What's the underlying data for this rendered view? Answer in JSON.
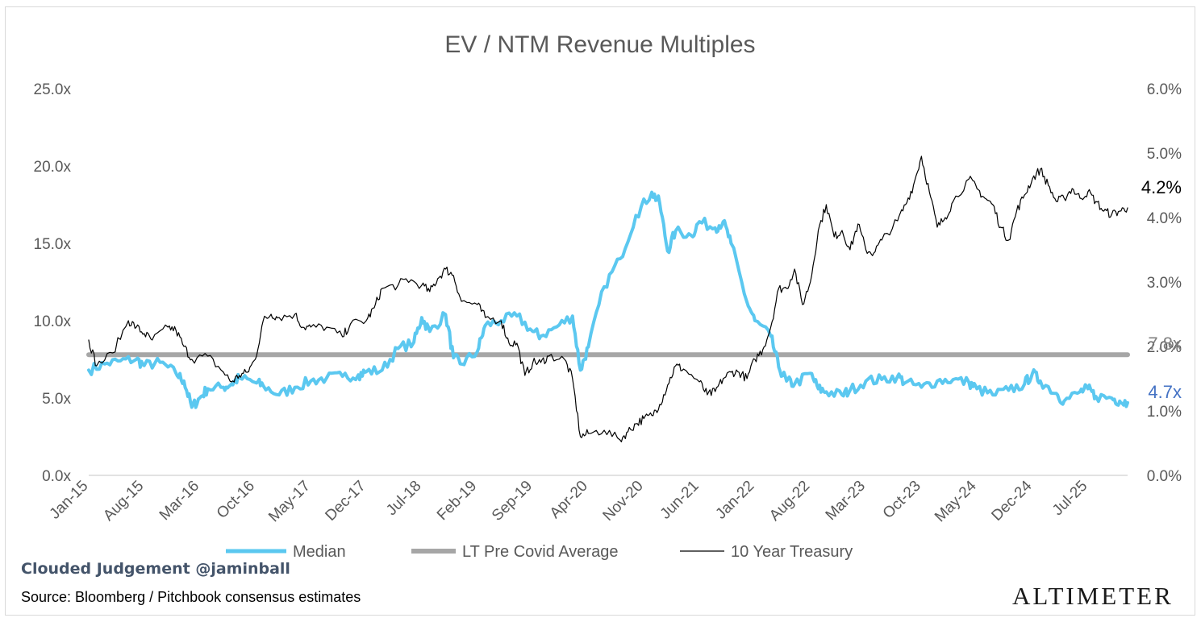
{
  "chart_data": {
    "type": "line",
    "title": "EV / NTM Revenue Multiples",
    "x_tick_labels": [
      "Jan-15",
      "Aug-15",
      "Mar-16",
      "Oct-16",
      "May-17",
      "Dec-17",
      "Jul-18",
      "Feb-19",
      "Sep-19",
      "Apr-20",
      "Nov-20",
      "Jun-21",
      "Jan-22",
      "Aug-22",
      "Mar-23",
      "Oct-23",
      "May-24",
      "Dec-24",
      "Jul-25"
    ],
    "y_left": {
      "range": [
        0,
        25
      ],
      "ticks": [
        "0.0x",
        "5.0x",
        "10.0x",
        "15.0x",
        "20.0x",
        "25.0x"
      ]
    },
    "y_right": {
      "range": [
        0,
        6
      ],
      "ticks": [
        "0.0%",
        "1.0%",
        "2.0%",
        "3.0%",
        "4.0%",
        "5.0%",
        "6.0%"
      ]
    },
    "grid": false,
    "legend_position": "bottom",
    "series": [
      {
        "name": "Median",
        "axis": "left",
        "color": "#5bc8f0",
        "points": [
          [
            "Jan-15",
            6.8
          ],
          [
            "Mar-15",
            7.2
          ],
          [
            "May-15",
            7.4
          ],
          [
            "Jul-15",
            7.5
          ],
          [
            "Aug-15",
            7.1
          ],
          [
            "Oct-15",
            7.3
          ],
          [
            "Dec-15",
            6.6
          ],
          [
            "Jan-16",
            6.1
          ],
          [
            "Feb-16",
            4.4
          ],
          [
            "Mar-16",
            5.0
          ],
          [
            "Apr-16",
            5.6
          ],
          [
            "Jun-16",
            5.7
          ],
          [
            "Jul-16",
            5.9
          ],
          [
            "Aug-16",
            6.3
          ],
          [
            "Oct-16",
            6.0
          ],
          [
            "Nov-16",
            5.8
          ],
          [
            "Jan-17",
            5.2
          ],
          [
            "Mar-17",
            5.7
          ],
          [
            "May-17",
            6.1
          ],
          [
            "Jul-17",
            6.3
          ],
          [
            "Sep-17",
            6.4
          ],
          [
            "Nov-17",
            6.5
          ],
          [
            "Dec-17",
            6.7
          ],
          [
            "Feb-18",
            6.8
          ],
          [
            "Apr-18",
            8.2
          ],
          [
            "Jun-18",
            8.6
          ],
          [
            "Jul-18",
            10.2
          ],
          [
            "Aug-18",
            9.3
          ],
          [
            "Oct-18",
            10.4
          ],
          [
            "Nov-18",
            7.6
          ],
          [
            "Dec-18",
            7.2
          ],
          [
            "Feb-19",
            8.0
          ],
          [
            "Mar-19",
            9.7
          ],
          [
            "May-19",
            10.0
          ],
          [
            "Jul-19",
            10.3
          ],
          [
            "Sep-19",
            9.3
          ],
          [
            "Oct-19",
            9.0
          ],
          [
            "Dec-19",
            9.6
          ],
          [
            "Feb-20",
            10.3
          ],
          [
            "Mar-20",
            6.8
          ],
          [
            "Apr-20",
            8.3
          ],
          [
            "Jun-20",
            12.2
          ],
          [
            "Aug-20",
            14.0
          ],
          [
            "Oct-20",
            16.8
          ],
          [
            "Dec-20",
            18.3
          ],
          [
            "Jan-21",
            17.6
          ],
          [
            "Feb-21",
            14.5
          ],
          [
            "Mar-21",
            15.8
          ],
          [
            "May-21",
            15.5
          ],
          [
            "Jun-21",
            16.4
          ],
          [
            "Aug-21",
            16.0
          ],
          [
            "Sep-21",
            16.4
          ],
          [
            "Oct-21",
            15.0
          ],
          [
            "Dec-21",
            11.2
          ],
          [
            "Jan-22",
            10.0
          ],
          [
            "Mar-22",
            9.0
          ],
          [
            "Apr-22",
            7.0
          ],
          [
            "May-22",
            6.1
          ],
          [
            "Jun-22",
            5.9
          ],
          [
            "Aug-22",
            6.6
          ],
          [
            "Sep-22",
            5.6
          ],
          [
            "Oct-22",
            5.4
          ],
          [
            "Dec-22",
            5.2
          ],
          [
            "Jan-23",
            5.5
          ],
          [
            "Mar-23",
            6.1
          ],
          [
            "May-23",
            6.2
          ],
          [
            "Jul-23",
            6.4
          ],
          [
            "Aug-23",
            6.0
          ],
          [
            "Oct-23",
            5.7
          ],
          [
            "Dec-23",
            6.1
          ],
          [
            "Feb-24",
            6.2
          ],
          [
            "Apr-24",
            6.0
          ],
          [
            "May-24",
            5.6
          ],
          [
            "Jul-24",
            5.2
          ],
          [
            "Sep-24",
            5.5
          ],
          [
            "Nov-24",
            5.9
          ],
          [
            "Dec-24",
            6.6
          ],
          [
            "Jan-25",
            6.1
          ],
          [
            "Mar-25",
            5.3
          ],
          [
            "Apr-25",
            4.8
          ],
          [
            "Jun-25",
            5.4
          ],
          [
            "Jul-25",
            5.6
          ],
          [
            "Aug-25",
            5.1
          ],
          [
            "Oct-25",
            5.0
          ],
          [
            "Nov-25",
            4.8
          ],
          [
            "Dec-25",
            4.7
          ]
        ]
      },
      {
        "name": "LT Pre Covid Average",
        "axis": "left",
        "color": "#a6a6a6",
        "points": [
          [
            "Jan-15",
            7.8
          ],
          [
            "Dec-25",
            7.8
          ]
        ]
      },
      {
        "name": "10 Year Treasury",
        "axis": "right",
        "color": "#000000",
        "points": [
          [
            "Jan-15",
            2.1
          ],
          [
            "Feb-15",
            1.7
          ],
          [
            "Apr-15",
            1.9
          ],
          [
            "Jun-15",
            2.4
          ],
          [
            "Jul-15",
            2.3
          ],
          [
            "Aug-15",
            2.2
          ],
          [
            "Sep-15",
            2.1
          ],
          [
            "Nov-15",
            2.3
          ],
          [
            "Dec-15",
            2.25
          ],
          [
            "Jan-16",
            2.0
          ],
          [
            "Feb-16",
            1.8
          ],
          [
            "Apr-16",
            1.85
          ],
          [
            "Jun-16",
            1.6
          ],
          [
            "Jul-16",
            1.45
          ],
          [
            "Aug-16",
            1.55
          ],
          [
            "Sep-16",
            1.6
          ],
          [
            "Oct-16",
            1.8
          ],
          [
            "Nov-16",
            2.4
          ],
          [
            "Dec-16",
            2.5
          ],
          [
            "Jan-17",
            2.45
          ],
          [
            "Mar-17",
            2.5
          ],
          [
            "Apr-17",
            2.3
          ],
          [
            "May-17",
            2.3
          ],
          [
            "Jul-17",
            2.3
          ],
          [
            "Sep-17",
            2.15
          ],
          [
            "Oct-17",
            2.35
          ],
          [
            "Dec-17",
            2.4
          ],
          [
            "Jan-18",
            2.6
          ],
          [
            "Feb-18",
            2.9
          ],
          [
            "Apr-18",
            2.95
          ],
          [
            "May-18",
            3.05
          ],
          [
            "Jul-18",
            2.95
          ],
          [
            "Aug-18",
            2.85
          ],
          [
            "Sep-18",
            3.05
          ],
          [
            "Oct-18",
            3.2
          ],
          [
            "Nov-18",
            3.1
          ],
          [
            "Dec-18",
            2.7
          ],
          [
            "Feb-19",
            2.65
          ],
          [
            "Mar-19",
            2.45
          ],
          [
            "May-19",
            2.4
          ],
          [
            "Jun-19",
            2.05
          ],
          [
            "Jul-19",
            2.05
          ],
          [
            "Aug-19",
            1.55
          ],
          [
            "Sep-19",
            1.75
          ],
          [
            "Oct-19",
            1.75
          ],
          [
            "Nov-19",
            1.85
          ],
          [
            "Jan-20",
            1.8
          ],
          [
            "Feb-20",
            1.5
          ],
          [
            "Mar-20",
            0.6
          ],
          [
            "Apr-20",
            0.65
          ],
          [
            "Jun-20",
            0.7
          ],
          [
            "Aug-20",
            0.55
          ],
          [
            "Sep-20",
            0.68
          ],
          [
            "Oct-20",
            0.8
          ],
          [
            "Nov-20",
            0.88
          ],
          [
            "Dec-20",
            0.93
          ],
          [
            "Jan-21",
            1.1
          ],
          [
            "Feb-21",
            1.4
          ],
          [
            "Mar-21",
            1.7
          ],
          [
            "Apr-21",
            1.65
          ],
          [
            "Jun-21",
            1.45
          ],
          [
            "Jul-21",
            1.25
          ],
          [
            "Aug-21",
            1.3
          ],
          [
            "Sep-21",
            1.5
          ],
          [
            "Oct-21",
            1.6
          ],
          [
            "Nov-21",
            1.6
          ],
          [
            "Dec-21",
            1.5
          ],
          [
            "Jan-22",
            1.8
          ],
          [
            "Feb-22",
            1.95
          ],
          [
            "Mar-22",
            2.3
          ],
          [
            "Apr-22",
            2.9
          ],
          [
            "May-22",
            2.9
          ],
          [
            "Jun-22",
            3.2
          ],
          [
            "Jul-22",
            2.65
          ],
          [
            "Aug-22",
            3.0
          ],
          [
            "Sep-22",
            3.8
          ],
          [
            "Oct-22",
            4.2
          ],
          [
            "Nov-22",
            3.7
          ],
          [
            "Dec-22",
            3.8
          ],
          [
            "Jan-23",
            3.5
          ],
          [
            "Feb-23",
            3.9
          ],
          [
            "Mar-23",
            3.5
          ],
          [
            "Apr-23",
            3.45
          ],
          [
            "May-23",
            3.65
          ],
          [
            "Jul-23",
            3.95
          ],
          [
            "Aug-23",
            4.2
          ],
          [
            "Sep-23",
            4.5
          ],
          [
            "Oct-23",
            4.95
          ],
          [
            "Nov-23",
            4.4
          ],
          [
            "Dec-23",
            3.85
          ],
          [
            "Jan-24",
            4.0
          ],
          [
            "Feb-24",
            4.25
          ],
          [
            "Apr-24",
            4.6
          ],
          [
            "May-24",
            4.45
          ],
          [
            "Jun-24",
            4.3
          ],
          [
            "Jul-24",
            4.2
          ],
          [
            "Aug-24",
            3.85
          ],
          [
            "Sep-24",
            3.65
          ],
          [
            "Oct-24",
            4.1
          ],
          [
            "Nov-24",
            4.35
          ],
          [
            "Dec-24",
            4.6
          ],
          [
            "Jan-25",
            4.75
          ],
          [
            "Feb-25",
            4.5
          ],
          [
            "Mar-25",
            4.25
          ],
          [
            "Apr-25",
            4.3
          ],
          [
            "May-25",
            4.45
          ],
          [
            "Jun-25",
            4.3
          ],
          [
            "Jul-25",
            4.4
          ],
          [
            "Aug-25",
            4.25
          ],
          [
            "Sep-25",
            4.1
          ],
          [
            "Oct-25",
            4.05
          ],
          [
            "Nov-25",
            4.1
          ],
          [
            "Dec-25",
            4.15
          ]
        ]
      }
    ],
    "annotations": [
      {
        "text": "7.8x",
        "series": "LT Pre Covid Average",
        "color": "#7f7f7f",
        "value": 7.8,
        "axis": "left"
      },
      {
        "text": "4.7x",
        "series": "Median",
        "color": "#4472c4",
        "value": 4.7,
        "axis": "left"
      },
      {
        "text": "4.2%",
        "series": "10 Year Treasury",
        "color": "#000000",
        "value": 4.2,
        "axis": "right"
      }
    ]
  },
  "branding": {
    "handle": "Clouded Judgement @jaminball",
    "source": "Source: Bloomberg / Pitchbook consensus estimates",
    "logo": "ALTIMETER"
  }
}
